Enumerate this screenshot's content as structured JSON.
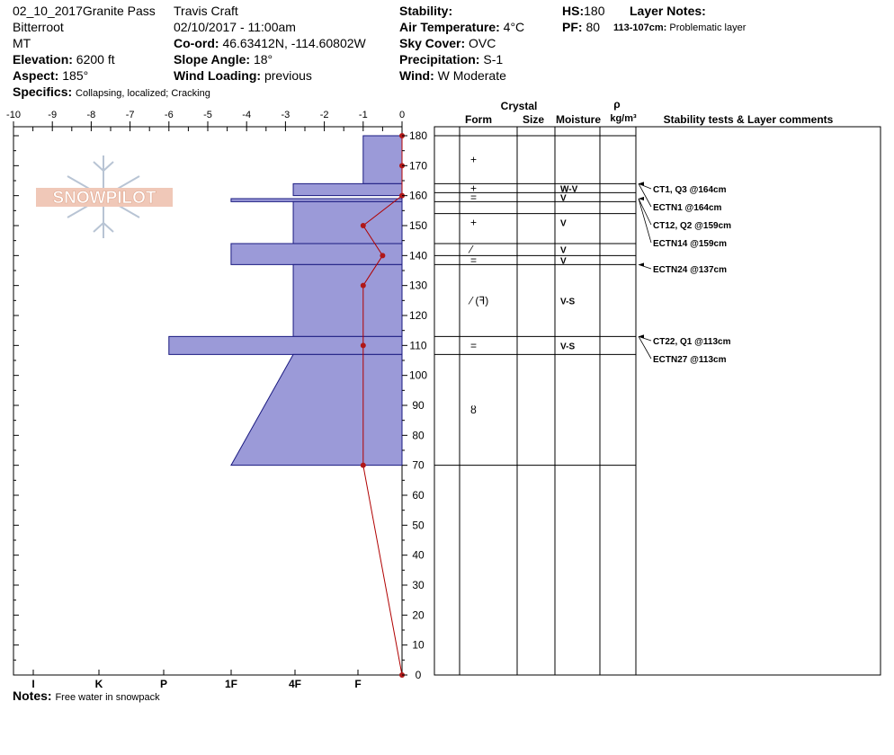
{
  "header": {
    "title": "02_10_2017Granite Pass",
    "range": "Bitterroot",
    "state": "MT",
    "elevation_label": "Elevation:",
    "elevation": "6200 ft",
    "aspect_label": "Aspect:",
    "aspect": "185°",
    "specifics_label": "Specifics:",
    "specifics": "Collapsing, localized;  Cracking",
    "observer": "Travis  Craft",
    "datetime": "02/10/2017 - 11:00am",
    "coord_label": "Co-ord:",
    "coord": "46.63412N, -114.60802W",
    "slope_label": "Slope Angle:",
    "slope": "18°",
    "wind_loading_label": "Wind Loading:",
    "wind_loading": "previous",
    "stability_label": "Stability:",
    "air_temp_label": "Air Temperature:",
    "air_temp": "4°C",
    "sky_label": "Sky Cover:",
    "sky": "OVC",
    "precip_label": "Precipitation:",
    "precip": "S-1",
    "wind_label": "Wind:",
    "wind": "W Moderate",
    "hs_label": "HS:",
    "hs": "180",
    "pf_label": "PF:",
    "pf": "80",
    "layer_notes_label": "Layer Notes:",
    "layer_note_range": "113-107cm:",
    "layer_note_text": "Problematic layer"
  },
  "notes_label": "Notes:",
  "notes": "Free water in snowpack",
  "logo_text": "SNOWPILOT",
  "colors": {
    "hardness_fill": "#9b9ad8",
    "hardness_stroke": "#1a1a80",
    "temp_line": "#b00000",
    "temp_point": "#b01818"
  },
  "table_headers": {
    "crystal": "Crystal",
    "form": "Form",
    "size": "Size",
    "moisture": "Moisture",
    "rho": "ρ",
    "density_unit": "kg/m³",
    "stability": "Stability tests & Layer comments"
  },
  "chart_data": {
    "type": "snow_profile",
    "y_axis": {
      "label": "",
      "min": 0,
      "max": 180,
      "ticks": [
        0,
        10,
        20,
        30,
        40,
        50,
        60,
        70,
        80,
        90,
        100,
        110,
        120,
        130,
        140,
        150,
        160,
        170,
        180
      ]
    },
    "temp_axis": {
      "min": -10,
      "max": 0,
      "ticks": [
        -10,
        -9,
        -8,
        -7,
        -6,
        -5,
        -4,
        -3,
        -2,
        -1,
        0
      ]
    },
    "hardness_axis": {
      "ticks": [
        "I",
        "K",
        "P",
        "1F",
        "4F",
        "F"
      ]
    },
    "hardness_layers": [
      {
        "top": 180,
        "bottom": 164,
        "hardness_top": -1,
        "hardness_bottom": -1
      },
      {
        "top": 164,
        "bottom": 160,
        "hardness_top": -2.8,
        "hardness_bottom": -2.8
      },
      {
        "top": 159,
        "bottom": 158,
        "hardness_top": -4.4,
        "hardness_bottom": -4.4
      },
      {
        "top": 158,
        "bottom": 144,
        "hardness_top": -2.8,
        "hardness_bottom": -2.8
      },
      {
        "top": 144,
        "bottom": 137,
        "hardness_top": -4.4,
        "hardness_bottom": -4.4
      },
      {
        "top": 137,
        "bottom": 113,
        "hardness_top": -2.8,
        "hardness_bottom": -2.8
      },
      {
        "top": 113,
        "bottom": 107,
        "hardness_top": -6,
        "hardness_bottom": -6
      },
      {
        "top": 107,
        "bottom": 70,
        "hardness_top": -2.8,
        "hardness_bottom": -4.4
      }
    ],
    "temperature_profile": [
      {
        "depth": 180,
        "temp": 0
      },
      {
        "depth": 170,
        "temp": 0
      },
      {
        "depth": 160,
        "temp": 0
      },
      {
        "depth": 150,
        "temp": -1
      },
      {
        "depth": 140,
        "temp": -0.5
      },
      {
        "depth": 130,
        "temp": -1
      },
      {
        "depth": 110,
        "temp": -1
      },
      {
        "depth": 70,
        "temp": -1
      },
      {
        "depth": 0,
        "temp": 0
      }
    ],
    "boundaries": [
      180,
      164,
      161,
      158,
      154,
      144,
      140,
      137,
      113,
      107,
      70
    ],
    "layer_rows": [
      {
        "top": 180,
        "bottom": 164,
        "form": "+",
        "moisture": ""
      },
      {
        "top": 164,
        "bottom": 161,
        "form": "+",
        "moisture": "W-V"
      },
      {
        "top": 161,
        "bottom": 158,
        "form": "=",
        "moisture": "V"
      },
      {
        "top": 158,
        "bottom": 144,
        "form": "+",
        "moisture": "V"
      },
      {
        "top": 144,
        "bottom": 140,
        "form": "⁄",
        "moisture": "V"
      },
      {
        "top": 140,
        "bottom": 137,
        "form": "=",
        "moisture": "V"
      },
      {
        "top": 137,
        "bottom": 113,
        "form": "⁄ (ꟻ)",
        "moisture": "V-S"
      },
      {
        "top": 113,
        "bottom": 107,
        "form": "=",
        "moisture": "V-S"
      },
      {
        "top": 107,
        "bottom": 70,
        "form": "ȣ",
        "moisture": ""
      }
    ],
    "stability_tests": [
      {
        "text": "CT1, Q3 @164cm",
        "depth": 164
      },
      {
        "text": "ECTN1 @164cm",
        "depth": 164
      },
      {
        "text": "CT12, Q2 @159cm",
        "depth": 159
      },
      {
        "text": "ECTN14 @159cm",
        "depth": 159
      },
      {
        "text": "ECTN24 @137cm",
        "depth": 137
      },
      {
        "text": "CT22, Q1 @113cm",
        "depth": 113
      },
      {
        "text": "ECTN27 @113cm",
        "depth": 113
      }
    ]
  }
}
